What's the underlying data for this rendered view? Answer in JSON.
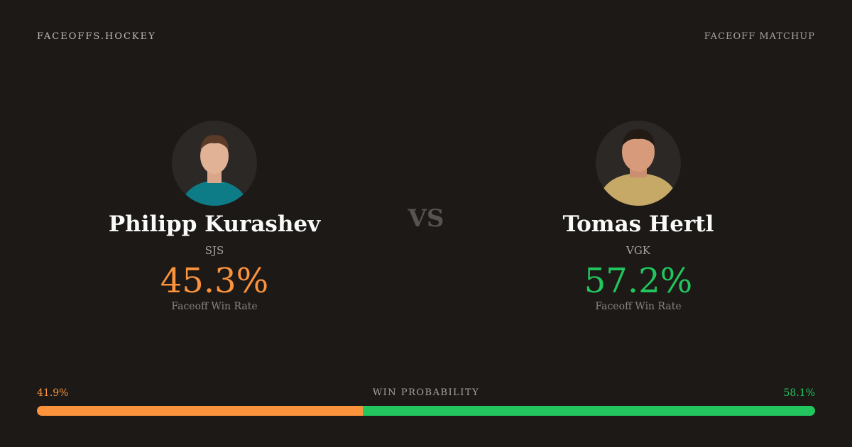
{
  "header": {
    "site": "FACEOFFS.HOCKEY",
    "label": "FACEOFF MATCHUP"
  },
  "vs": "VS",
  "players": [
    {
      "name": "Philipp Kurashev",
      "team": "SJS",
      "win_rate": "45.3%",
      "win_rate_label": "Faceoff Win Rate",
      "color": "#fb923c"
    },
    {
      "name": "Tomas Hertl",
      "team": "VGK",
      "win_rate": "57.2%",
      "win_rate_label": "Faceoff Win Rate",
      "color": "#22c55e"
    }
  ],
  "win_probability": {
    "title": "WIN PROBABILITY",
    "values": [
      41.9,
      58.1
    ],
    "value_labels": [
      "41.9%",
      "58.1%"
    ]
  }
}
